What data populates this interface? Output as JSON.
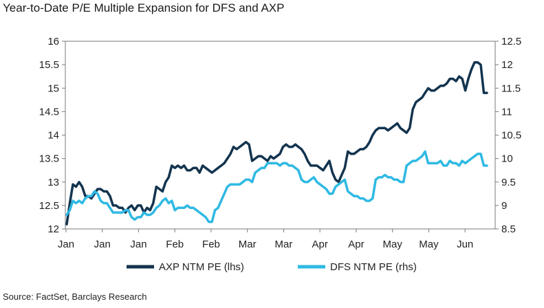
{
  "title": "Year-to-Date P/E Multiple Expansion for DFS and AXP",
  "source": "Source: FactSet, Barclays Research",
  "colors": {
    "axp": "#13344f",
    "dfs": "#2fb9e3",
    "frame": "#7a7a7a"
  },
  "chart_data": {
    "type": "line",
    "title": "Year-to-Date P/E Multiple Expansion for DFS and AXP",
    "x_ticks": [
      "Jan",
      "Jan",
      "Jan",
      "Feb",
      "Feb",
      "Mar",
      "Mar",
      "Apr",
      "Apr",
      "May",
      "May",
      "Jun"
    ],
    "y_left": {
      "min": 12,
      "max": 16,
      "ticks": [
        "12",
        "12.5",
        "13",
        "13.5",
        "14",
        "14.5",
        "15",
        "15.5",
        "16"
      ]
    },
    "y_right": {
      "min": 8.5,
      "max": 12.5,
      "ticks": [
        "8.5",
        "9",
        "9.5",
        "10",
        "10.5",
        "11",
        "11.5",
        "12",
        "12.5"
      ]
    },
    "grid": false,
    "legend_position": "bottom",
    "series": [
      {
        "name": "AXP NTM PE (lhs)",
        "axis": "left",
        "values": [
          12.1,
          12.55,
          12.95,
          12.9,
          13.0,
          12.9,
          12.7,
          12.7,
          12.65,
          12.75,
          12.85,
          12.85,
          12.8,
          12.8,
          12.7,
          12.5,
          12.5,
          12.45,
          12.45,
          12.35,
          12.45,
          12.5,
          12.4,
          12.5,
          12.5,
          12.35,
          12.45,
          12.4,
          12.55,
          12.9,
          12.85,
          12.8,
          13.0,
          13.1,
          13.35,
          13.3,
          13.35,
          13.3,
          13.35,
          13.25,
          13.25,
          13.3,
          13.3,
          13.2,
          13.35,
          13.3,
          13.25,
          13.2,
          13.25,
          13.3,
          13.35,
          13.4,
          13.5,
          13.6,
          13.75,
          13.7,
          13.75,
          13.8,
          13.85,
          13.8,
          13.45,
          13.5,
          13.55,
          13.55,
          13.5,
          13.45,
          13.55,
          13.5,
          13.55,
          13.6,
          13.75,
          13.8,
          13.75,
          13.75,
          13.8,
          13.75,
          13.7,
          13.6,
          13.45,
          13.35,
          13.35,
          13.35,
          13.3,
          13.25,
          13.35,
          13.45,
          13.2,
          13.05,
          13.0,
          13.15,
          13.3,
          13.65,
          13.6,
          13.6,
          13.65,
          13.7,
          13.7,
          13.75,
          13.85,
          14.0,
          14.1,
          14.15,
          14.15,
          14.15,
          14.1,
          14.15,
          14.2,
          14.25,
          14.15,
          14.1,
          14.05,
          14.15,
          14.55,
          14.7,
          14.75,
          14.8,
          14.9,
          15.0,
          14.95,
          14.95,
          15.0,
          15.05,
          15.05,
          15.1,
          15.2,
          15.2,
          15.15,
          15.25,
          15.2,
          14.95,
          15.2,
          15.4,
          15.55,
          15.55,
          15.5,
          14.9,
          14.9
        ]
      },
      {
        "name": "DFS NTM PE (rhs)",
        "axis": "right",
        "values": [
          8.8,
          8.9,
          9.1,
          9.05,
          9.1,
          9.05,
          9.15,
          9.2,
          9.2,
          9.3,
          9.25,
          9.1,
          9.05,
          9.05,
          8.95,
          8.85,
          8.85,
          8.85,
          8.85,
          8.9,
          8.9,
          8.75,
          8.7,
          8.75,
          8.75,
          8.85,
          8.8,
          8.8,
          8.85,
          8.95,
          9.0,
          9.1,
          9.15,
          9.05,
          9.1,
          8.9,
          8.95,
          8.95,
          8.95,
          9.0,
          8.95,
          8.95,
          8.9,
          8.85,
          8.8,
          8.75,
          8.65,
          8.65,
          8.9,
          8.95,
          9.1,
          9.25,
          9.4,
          9.45,
          9.45,
          9.45,
          9.45,
          9.5,
          9.55,
          9.55,
          9.5,
          9.7,
          9.75,
          9.8,
          9.8,
          9.9,
          9.9,
          9.9,
          9.9,
          9.85,
          9.9,
          9.9,
          9.85,
          9.85,
          9.8,
          9.75,
          9.55,
          9.5,
          9.5,
          9.55,
          9.6,
          9.5,
          9.45,
          9.4,
          9.35,
          9.25,
          9.25,
          9.4,
          9.45,
          9.5,
          9.55,
          9.3,
          9.25,
          9.2,
          9.2,
          9.15,
          9.15,
          9.1,
          9.1,
          9.15,
          9.55,
          9.6,
          9.6,
          9.65,
          9.6,
          9.6,
          9.55,
          9.55,
          9.5,
          9.5,
          9.85,
          9.9,
          9.95,
          9.95,
          10.0,
          10.05,
          10.15,
          9.9,
          9.9,
          9.9,
          9.9,
          9.95,
          9.85,
          9.85,
          9.95,
          9.9,
          9.9,
          9.85,
          9.95,
          9.9,
          9.95,
          10.0,
          10.05,
          10.1,
          10.1,
          9.85,
          9.85
        ]
      }
    ]
  }
}
